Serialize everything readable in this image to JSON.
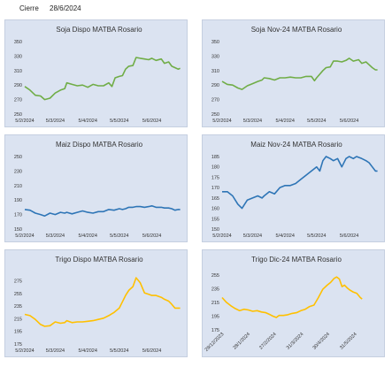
{
  "header": {
    "label": "Cierre",
    "date": "28/6/2024"
  },
  "chart_data": [
    {
      "type": "line",
      "title": "Soja Dispo MATBA Rosario",
      "color": "#70ad47",
      "ylim": [
        250,
        350
      ],
      "yticks": [
        "350",
        "330",
        "310",
        "290",
        "270",
        "250"
      ],
      "ytick_values": [
        350,
        330,
        310,
        290,
        270,
        250
      ],
      "x_range": [
        0,
        150
      ],
      "xticks": [
        "5/2/2024",
        "5/3/2024",
        "5/4/2024",
        "5/5/2024",
        "5/6/2024"
      ],
      "xtick_pos": [
        0,
        29,
        60,
        90,
        121
      ],
      "points": [
        [
          0,
          288
        ],
        [
          5,
          283
        ],
        [
          10,
          276
        ],
        [
          15,
          275
        ],
        [
          19,
          270
        ],
        [
          24,
          272
        ],
        [
          29,
          279
        ],
        [
          34,
          283
        ],
        [
          38,
          285
        ],
        [
          40,
          293
        ],
        [
          45,
          291
        ],
        [
          50,
          289
        ],
        [
          55,
          290
        ],
        [
          60,
          287
        ],
        [
          65,
          291
        ],
        [
          70,
          289
        ],
        [
          75,
          289
        ],
        [
          80,
          293
        ],
        [
          83,
          288
        ],
        [
          86,
          300
        ],
        [
          90,
          302
        ],
        [
          93,
          303
        ],
        [
          96,
          312
        ],
        [
          99,
          316
        ],
        [
          103,
          317
        ],
        [
          106,
          328
        ],
        [
          110,
          327
        ],
        [
          114,
          326
        ],
        [
          118,
          325
        ],
        [
          121,
          327
        ],
        [
          125,
          324
        ],
        [
          130,
          326
        ],
        [
          133,
          320
        ],
        [
          137,
          322
        ],
        [
          140,
          316
        ],
        [
          143,
          314
        ],
        [
          146,
          312
        ],
        [
          148,
          313
        ]
      ]
    },
    {
      "type": "line",
      "title": "Soja Nov-24 MATBA Rosario",
      "color": "#70ad47",
      "ylim": [
        250,
        350
      ],
      "yticks": [
        "350",
        "330",
        "310",
        "290",
        "270",
        "250"
      ],
      "ytick_values": [
        350,
        330,
        310,
        290,
        270,
        250
      ],
      "x_range": [
        0,
        150
      ],
      "xticks": [
        "5/2/2024",
        "5/3/2024",
        "5/4/2024",
        "5/5/2024",
        "5/6/2024"
      ],
      "xtick_pos": [
        0,
        29,
        60,
        90,
        121
      ],
      "points": [
        [
          0,
          295
        ],
        [
          5,
          291
        ],
        [
          10,
          290
        ],
        [
          15,
          286
        ],
        [
          19,
          284
        ],
        [
          24,
          289
        ],
        [
          29,
          292
        ],
        [
          34,
          295
        ],
        [
          38,
          297
        ],
        [
          40,
          300
        ],
        [
          45,
          299
        ],
        [
          50,
          297
        ],
        [
          55,
          300
        ],
        [
          60,
          300
        ],
        [
          65,
          301
        ],
        [
          70,
          300
        ],
        [
          75,
          300
        ],
        [
          80,
          302
        ],
        [
          85,
          302
        ],
        [
          88,
          296
        ],
        [
          90,
          300
        ],
        [
          93,
          305
        ],
        [
          96,
          310
        ],
        [
          99,
          314
        ],
        [
          103,
          315
        ],
        [
          106,
          323
        ],
        [
          110,
          323
        ],
        [
          114,
          322
        ],
        [
          118,
          324
        ],
        [
          121,
          327
        ],
        [
          125,
          323
        ],
        [
          130,
          325
        ],
        [
          133,
          320
        ],
        [
          137,
          322
        ],
        [
          140,
          318
        ],
        [
          143,
          314
        ],
        [
          146,
          311
        ],
        [
          148,
          311
        ]
      ]
    },
    {
      "type": "line",
      "title": "Maiz Dispo MATBA Rosario",
      "color": "#2e75b6",
      "ylim": [
        150,
        250
      ],
      "yticks": [
        "250",
        "230",
        "210",
        "190",
        "170",
        "150"
      ],
      "ytick_values": [
        250,
        230,
        210,
        190,
        170,
        150
      ],
      "x_range": [
        0,
        150
      ],
      "xticks": [
        "5/2/2024",
        "5/3/2024",
        "5/4/2024",
        "5/5/2024",
        "5/6/2024"
      ],
      "xtick_pos": [
        0,
        29,
        60,
        90,
        121
      ],
      "points": [
        [
          0,
          177
        ],
        [
          5,
          176
        ],
        [
          10,
          172
        ],
        [
          15,
          170
        ],
        [
          19,
          168
        ],
        [
          24,
          172
        ],
        [
          29,
          170
        ],
        [
          34,
          173
        ],
        [
          38,
          172
        ],
        [
          40,
          173
        ],
        [
          45,
          171
        ],
        [
          50,
          173
        ],
        [
          55,
          175
        ],
        [
          60,
          173
        ],
        [
          65,
          172
        ],
        [
          70,
          174
        ],
        [
          75,
          174
        ],
        [
          80,
          177
        ],
        [
          85,
          176
        ],
        [
          90,
          178
        ],
        [
          93,
          177
        ],
        [
          96,
          178
        ],
        [
          99,
          180
        ],
        [
          103,
          180
        ],
        [
          106,
          181
        ],
        [
          110,
          181
        ],
        [
          114,
          180
        ],
        [
          118,
          181
        ],
        [
          121,
          182
        ],
        [
          125,
          180
        ],
        [
          130,
          180
        ],
        [
          133,
          179
        ],
        [
          137,
          179
        ],
        [
          140,
          178
        ],
        [
          143,
          176
        ],
        [
          146,
          177
        ],
        [
          148,
          177
        ]
      ]
    },
    {
      "type": "line",
      "title": "Maiz Nov-24 MATBA Rosario",
      "color": "#2e75b6",
      "ylim": [
        150,
        185
      ],
      "yticks": [
        "185",
        "180",
        "175",
        "170",
        "165",
        "160",
        "155",
        "150"
      ],
      "ytick_values": [
        185,
        180,
        175,
        170,
        165,
        160,
        155,
        150
      ],
      "x_range": [
        0,
        150
      ],
      "xticks": [
        "5/2/2024",
        "5/3/2024",
        "5/4/2024",
        "5/5/2024",
        "5/6/2024"
      ],
      "xtick_pos": [
        0,
        29,
        60,
        90,
        121
      ],
      "points": [
        [
          0,
          168
        ],
        [
          5,
          168
        ],
        [
          10,
          166
        ],
        [
          15,
          162
        ],
        [
          19,
          160
        ],
        [
          24,
          164
        ],
        [
          29,
          165
        ],
        [
          34,
          166
        ],
        [
          38,
          165
        ],
        [
          40,
          166
        ],
        [
          45,
          168
        ],
        [
          50,
          167
        ],
        [
          55,
          170
        ],
        [
          60,
          171
        ],
        [
          65,
          171
        ],
        [
          70,
          172
        ],
        [
          75,
          174
        ],
        [
          80,
          176
        ],
        [
          85,
          178
        ],
        [
          90,
          180
        ],
        [
          93,
          178
        ],
        [
          96,
          183
        ],
        [
          99,
          185
        ],
        [
          103,
          184
        ],
        [
          106,
          183
        ],
        [
          110,
          184
        ],
        [
          114,
          180
        ],
        [
          118,
          184
        ],
        [
          121,
          185
        ],
        [
          125,
          184
        ],
        [
          128,
          185
        ],
        [
          133,
          184
        ],
        [
          137,
          183
        ],
        [
          140,
          182
        ],
        [
          143,
          180
        ],
        [
          146,
          178
        ],
        [
          148,
          178
        ]
      ]
    },
    {
      "type": "line",
      "title": "Trigo Dispo MATBA Rosario",
      "color": "#ffc000",
      "ylim": [
        175,
        290
      ],
      "yticks": [
        "275",
        "255",
        "235",
        "215",
        "195",
        "175"
      ],
      "ytick_values": [
        275,
        255,
        235,
        215,
        195,
        175
      ],
      "x_range": [
        0,
        150
      ],
      "xticks": [
        "5/2/2024",
        "5/3/2024",
        "5/4/2024",
        "5/5/2024",
        "5/6/2024"
      ],
      "xtick_pos": [
        0,
        29,
        60,
        90,
        121
      ],
      "points": [
        [
          0,
          222
        ],
        [
          5,
          220
        ],
        [
          10,
          214
        ],
        [
          15,
          206
        ],
        [
          19,
          203
        ],
        [
          24,
          204
        ],
        [
          29,
          210
        ],
        [
          34,
          208
        ],
        [
          38,
          209
        ],
        [
          40,
          212
        ],
        [
          45,
          209
        ],
        [
          50,
          210
        ],
        [
          55,
          210
        ],
        [
          60,
          211
        ],
        [
          65,
          212
        ],
        [
          70,
          214
        ],
        [
          75,
          216
        ],
        [
          80,
          220
        ],
        [
          85,
          225
        ],
        [
          90,
          232
        ],
        [
          93,
          242
        ],
        [
          96,
          252
        ],
        [
          99,
          260
        ],
        [
          103,
          266
        ],
        [
          106,
          280
        ],
        [
          110,
          272
        ],
        [
          114,
          256
        ],
        [
          118,
          254
        ],
        [
          121,
          252
        ],
        [
          125,
          252
        ],
        [
          130,
          249
        ],
        [
          133,
          246
        ],
        [
          137,
          243
        ],
        [
          140,
          238
        ],
        [
          143,
          232
        ],
        [
          146,
          232
        ],
        [
          148,
          232
        ]
      ]
    },
    {
      "type": "line",
      "title": "Trigo Dic-24 MATBA Rosario",
      "color": "#ffc000",
      "ylim": [
        175,
        260
      ],
      "yticks": [
        "255",
        "235",
        "215",
        "195",
        "175"
      ],
      "ytick_values": [
        255,
        235,
        215,
        195,
        175
      ],
      "x_range": [
        0,
        180
      ],
      "xticks": [
        "29/12/2023",
        "28/1/2024",
        "27/2/2024",
        "31/3/2024",
        "30/4/2024",
        "31/5/2024"
      ],
      "xtick_pos": [
        0,
        30,
        60,
        91,
        121,
        152
      ],
      "points": [
        [
          0,
          222
        ],
        [
          5,
          215
        ],
        [
          10,
          210
        ],
        [
          15,
          206
        ],
        [
          20,
          203
        ],
        [
          25,
          205
        ],
        [
          30,
          204
        ],
        [
          35,
          202
        ],
        [
          40,
          203
        ],
        [
          45,
          201
        ],
        [
          50,
          200
        ],
        [
          55,
          197
        ],
        [
          58,
          195
        ],
        [
          62,
          193
        ],
        [
          65,
          196
        ],
        [
          70,
          196
        ],
        [
          75,
          197
        ],
        [
          80,
          199
        ],
        [
          85,
          200
        ],
        [
          90,
          203
        ],
        [
          95,
          205
        ],
        [
          100,
          209
        ],
        [
          105,
          211
        ],
        [
          110,
          222
        ],
        [
          115,
          234
        ],
        [
          120,
          240
        ],
        [
          124,
          244
        ],
        [
          128,
          250
        ],
        [
          131,
          252
        ],
        [
          134,
          249
        ],
        [
          137,
          238
        ],
        [
          140,
          240
        ],
        [
          143,
          236
        ],
        [
          146,
          233
        ],
        [
          150,
          230
        ],
        [
          154,
          228
        ],
        [
          158,
          222
        ],
        [
          160,
          220
        ]
      ]
    }
  ]
}
